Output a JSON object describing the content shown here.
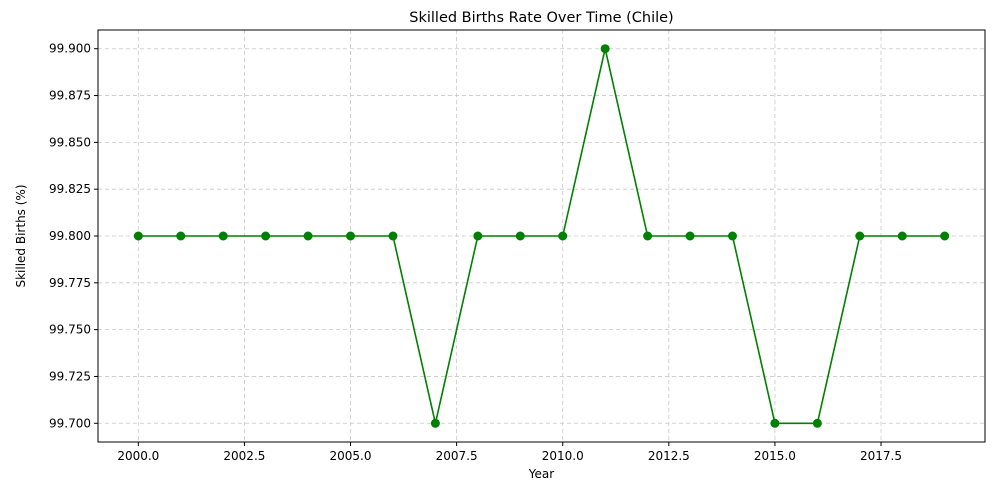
{
  "chart_data": {
    "type": "line",
    "title": "Skilled Births Rate Over Time (Chile)",
    "xlabel": "Year",
    "ylabel": "Skilled Births (%)",
    "xlim": [
      1999.05,
      2019.95
    ],
    "ylim": [
      99.69,
      99.91
    ],
    "x_ticks": [
      2000.0,
      2002.5,
      2005.0,
      2007.5,
      2010.0,
      2012.5,
      2015.0,
      2017.5
    ],
    "x_tick_labels": [
      "2000.0",
      "2002.5",
      "2005.0",
      "2007.5",
      "2010.0",
      "2012.5",
      "2015.0",
      "2017.5"
    ],
    "y_ticks": [
      99.7,
      99.725,
      99.75,
      99.775,
      99.8,
      99.825,
      99.85,
      99.875,
      99.9
    ],
    "y_tick_labels": [
      "99.700",
      "99.725",
      "99.750",
      "99.775",
      "99.800",
      "99.825",
      "99.850",
      "99.875",
      "99.900"
    ],
    "grid": true,
    "grid_style": "dashed",
    "series": [
      {
        "color": "#008000",
        "marker": "circle",
        "x": [
          2000,
          2001,
          2002,
          2003,
          2004,
          2005,
          2006,
          2007,
          2008,
          2009,
          2010,
          2011,
          2012,
          2013,
          2014,
          2015,
          2016,
          2017,
          2018,
          2019
        ],
        "y": [
          99.8,
          99.8,
          99.8,
          99.8,
          99.8,
          99.8,
          99.8,
          99.7,
          99.8,
          99.8,
          99.8,
          99.9,
          99.8,
          99.8,
          99.8,
          99.7,
          99.7,
          99.8,
          99.8,
          99.8
        ]
      }
    ]
  }
}
